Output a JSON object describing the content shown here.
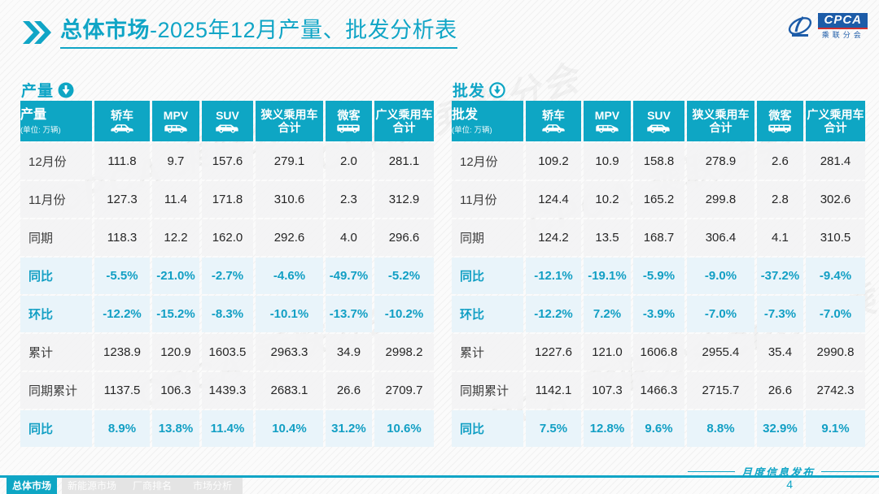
{
  "header": {
    "title_bold": "总体市场",
    "title_rest": "-2025年12月产量、批发分析表",
    "logo": {
      "abbr": "CPCA",
      "name_cn": "乘联分会"
    }
  },
  "watermark_text": "CPCA 乘联分会",
  "tables": [
    {
      "section_label": "产量",
      "corner_label": "产量",
      "corner_unit": "(单位: 万辆)",
      "columns": [
        {
          "key": "sedan",
          "label": "轿车",
          "icon": "sedan-icon"
        },
        {
          "key": "mpv",
          "label": "MPV",
          "icon": "mpv-icon"
        },
        {
          "key": "suv",
          "label": "SUV",
          "icon": "suv-icon"
        },
        {
          "key": "narrow-total",
          "label": "狭义乘用车\n合计"
        },
        {
          "key": "microvan",
          "label": "微客",
          "icon": "van-icon"
        },
        {
          "key": "broad-total",
          "label": "广义乘用车\n合计"
        }
      ],
      "rows": [
        {
          "label": "12月份",
          "highlight": false,
          "values": [
            "111.8",
            "9.7",
            "157.6",
            "279.1",
            "2.0",
            "281.1"
          ]
        },
        {
          "label": "11月份",
          "highlight": false,
          "values": [
            "127.3",
            "11.4",
            "171.8",
            "310.6",
            "2.3",
            "312.9"
          ]
        },
        {
          "label": "同期",
          "highlight": false,
          "values": [
            "118.3",
            "12.2",
            "162.0",
            "292.6",
            "4.0",
            "296.6"
          ]
        },
        {
          "label": "同比",
          "highlight": true,
          "values": [
            "-5.5%",
            "-21.0%",
            "-2.7%",
            "-4.6%",
            "-49.7%",
            "-5.2%"
          ]
        },
        {
          "label": "环比",
          "highlight": true,
          "values": [
            "-12.2%",
            "-15.2%",
            "-8.3%",
            "-10.1%",
            "-13.7%",
            "-10.2%"
          ]
        },
        {
          "label": "累计",
          "highlight": false,
          "values": [
            "1238.9",
            "120.9",
            "1603.5",
            "2963.3",
            "34.9",
            "2998.2"
          ]
        },
        {
          "label": "同期累计",
          "highlight": false,
          "values": [
            "1137.5",
            "106.3",
            "1439.3",
            "2683.1",
            "26.6",
            "2709.7"
          ]
        },
        {
          "label": "同比",
          "highlight": true,
          "values": [
            "8.9%",
            "13.8%",
            "11.4%",
            "10.4%",
            "31.2%",
            "10.6%"
          ]
        }
      ]
    },
    {
      "section_label": "批发",
      "corner_label": "批发",
      "corner_unit": "(单位: 万辆)",
      "columns": [
        {
          "key": "sedan",
          "label": "轿车",
          "icon": "sedan-icon"
        },
        {
          "key": "mpv",
          "label": "MPV",
          "icon": "mpv-icon"
        },
        {
          "key": "suv",
          "label": "SUV",
          "icon": "suv-icon"
        },
        {
          "key": "narrow-total",
          "label": "狭义乘用车\n合计"
        },
        {
          "key": "microvan",
          "label": "微客",
          "icon": "van-icon"
        },
        {
          "key": "broad-total",
          "label": "广义乘用车\n合计"
        }
      ],
      "rows": [
        {
          "label": "12月份",
          "highlight": false,
          "values": [
            "109.2",
            "10.9",
            "158.8",
            "278.9",
            "2.6",
            "281.4"
          ]
        },
        {
          "label": "11月份",
          "highlight": false,
          "values": [
            "124.4",
            "10.2",
            "165.2",
            "299.8",
            "2.8",
            "302.6"
          ]
        },
        {
          "label": "同期",
          "highlight": false,
          "values": [
            "124.2",
            "13.5",
            "168.7",
            "306.4",
            "4.1",
            "310.5"
          ]
        },
        {
          "label": "同比",
          "highlight": true,
          "values": [
            "-12.1%",
            "-19.1%",
            "-5.9%",
            "-9.0%",
            "-37.2%",
            "-9.4%"
          ]
        },
        {
          "label": "环比",
          "highlight": true,
          "values": [
            "-12.2%",
            "7.2%",
            "-3.9%",
            "-7.0%",
            "-7.3%",
            "-7.0%"
          ]
        },
        {
          "label": "累计",
          "highlight": false,
          "values": [
            "1227.6",
            "121.0",
            "1606.8",
            "2955.4",
            "35.4",
            "2990.8"
          ]
        },
        {
          "label": "同期累计",
          "highlight": false,
          "values": [
            "1142.1",
            "107.3",
            "1466.3",
            "2715.7",
            "26.6",
            "2742.3"
          ]
        },
        {
          "label": "同比",
          "highlight": true,
          "values": [
            "7.5%",
            "12.8%",
            "9.6%",
            "8.8%",
            "32.9%",
            "9.1%"
          ]
        }
      ]
    }
  ],
  "footer": {
    "tabs": [
      {
        "label": "总体市场",
        "active": true
      },
      {
        "label": "新能源市场",
        "active": false
      },
      {
        "label": "厂商排名",
        "active": false
      },
      {
        "label": "市场分析",
        "active": false
      }
    ],
    "publish_label": "月度信息发布",
    "page_number": "4"
  },
  "colors": {
    "accent": "#0ea6c4",
    "highlight_row_bg": "#e9f4fa",
    "logo_blue": "#1d5ca8",
    "logo_red": "#d03030"
  }
}
